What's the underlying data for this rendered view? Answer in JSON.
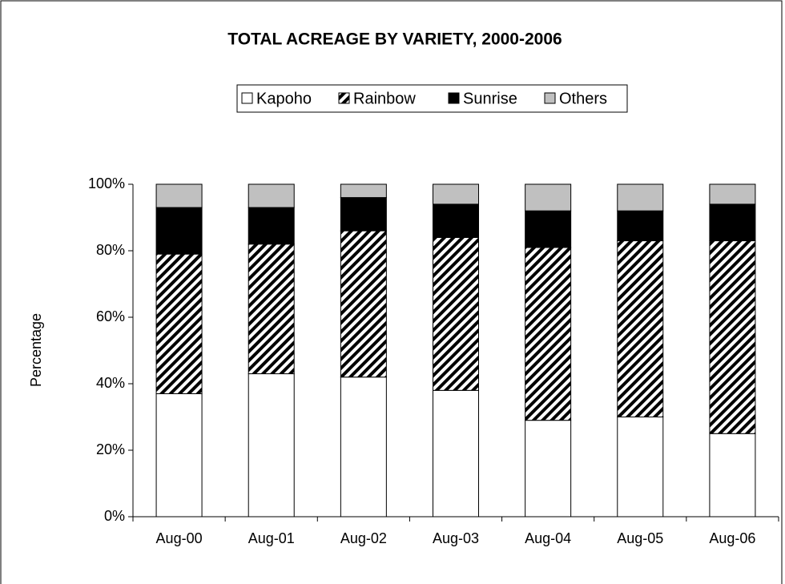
{
  "chart_data": {
    "type": "stacked-bar",
    "title": "TOTAL ACREAGE BY VARIETY, 2000-2006",
    "y_label": "Percentage",
    "categories": [
      "Aug-00",
      "Aug-01",
      "Aug-02",
      "Aug-03",
      "Aug-04",
      "Aug-05",
      "Aug-06"
    ],
    "series": [
      {
        "name": "Kapoho",
        "color": "#ffffff",
        "values": [
          37,
          43,
          42,
          38,
          29,
          30,
          25
        ]
      },
      {
        "name": "Rainbow",
        "color": "#000000",
        "pattern": "diagonal-hatch",
        "values": [
          42,
          39,
          44,
          46,
          52,
          53,
          58
        ]
      },
      {
        "name": "Sunrise",
        "color": "#000000",
        "values": [
          14,
          11,
          10,
          10,
          11,
          9,
          11
        ]
      },
      {
        "name": "Others",
        "color": "#c0c0c0",
        "values": [
          7,
          7,
          4,
          6,
          8,
          8,
          6
        ]
      }
    ],
    "ylim": [
      0,
      100
    ],
    "yticks": [
      {
        "value": 0,
        "label": "0%"
      },
      {
        "value": 20,
        "label": "20%"
      },
      {
        "value": 40,
        "label": "40%"
      },
      {
        "value": 60,
        "label": "60%"
      },
      {
        "value": 80,
        "label": "80%"
      },
      {
        "value": 100,
        "label": "100%"
      }
    ],
    "grid": false,
    "legend": "top"
  }
}
